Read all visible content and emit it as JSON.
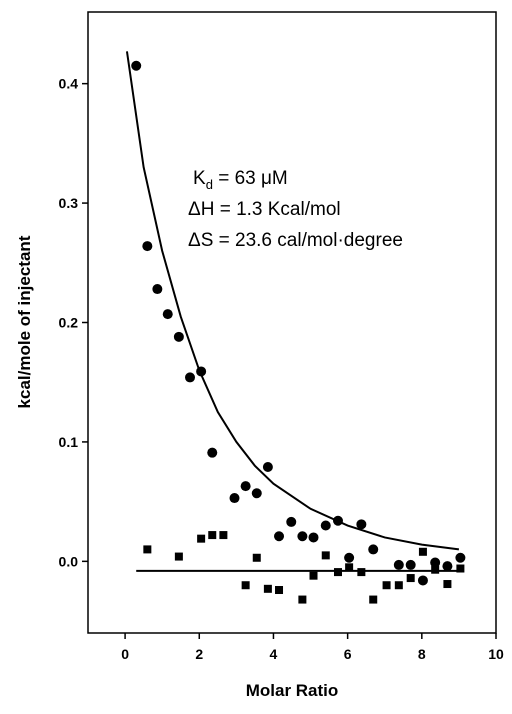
{
  "chart_data": {
    "type": "scatter",
    "x_label": "Molar Ratio",
    "y_label": "kcal/mole of injectant",
    "xlim": [
      -1,
      10
    ],
    "ylim": [
      -0.06,
      0.46
    ],
    "xticks": [
      0,
      2,
      4,
      6,
      8,
      10
    ],
    "yticks": [
      {
        "value": 0,
        "label": "0.0"
      },
      0.1,
      0.2,
      0.3,
      0.4
    ],
    "annotations": [
      {
        "text": "K",
        "subscript": "d",
        "suffix": " = 63 μM"
      },
      "ΔH = 1.3 Kcal/mol",
      "ΔS = 23.6 cal/mol·degree"
    ],
    "series": [
      {
        "marker": "circle",
        "color": "#000000",
        "x": [
          0.3,
          0.6,
          0.87,
          1.15,
          1.45,
          1.75,
          2.05,
          2.35,
          2.95,
          3.25,
          3.55,
          3.85,
          4.15,
          4.48,
          4.78,
          5.08,
          5.41,
          5.74,
          6.04,
          6.37,
          6.69,
          7.38,
          7.7,
          8.03,
          8.36,
          8.69,
          9.04
        ],
        "values": [
          0.415,
          0.264,
          0.228,
          0.207,
          0.188,
          0.154,
          0.159,
          0.091,
          0.053,
          0.063,
          0.057,
          0.079,
          0.021,
          0.033,
          0.021,
          0.02,
          0.03,
          0.034,
          0.003,
          0.031,
          0.01,
          -0.003,
          -0.003,
          -0.016,
          -0.001,
          -0.004,
          0.003
        ]
      },
      {
        "marker": "square",
        "color": "#000000",
        "x": [
          0.6,
          1.45,
          2.05,
          2.35,
          2.65,
          3.25,
          3.55,
          3.85,
          4.15,
          4.78,
          5.08,
          5.41,
          5.74,
          6.04,
          6.37,
          6.69,
          7.05,
          7.38,
          7.7,
          8.03,
          8.36,
          8.69,
          9.04
        ],
        "values": [
          0.01,
          0.004,
          0.019,
          0.022,
          0.022,
          -0.02,
          0.003,
          -0.023,
          -0.024,
          -0.032,
          -0.012,
          0.005,
          -0.009,
          -0.005,
          -0.009,
          -0.032,
          -0.02,
          -0.02,
          -0.014,
          0.008,
          -0.007,
          -0.019,
          -0.006
        ]
      },
      {
        "marker": "line",
        "color": "#000000",
        "x": [
          0.05,
          0.5,
          1,
          1.5,
          2,
          2.5,
          3,
          3.5,
          4,
          5,
          6,
          7,
          8,
          9
        ],
        "values": [
          0.427,
          0.33,
          0.26,
          0.205,
          0.16,
          0.125,
          0.1,
          0.08,
          0.065,
          0.044,
          0.03,
          0.02,
          0.014,
          0.01
        ]
      },
      {
        "marker": "line",
        "color": "#000000",
        "x": [
          0.3,
          9.0
        ],
        "values": [
          -0.008,
          -0.008
        ]
      }
    ]
  }
}
